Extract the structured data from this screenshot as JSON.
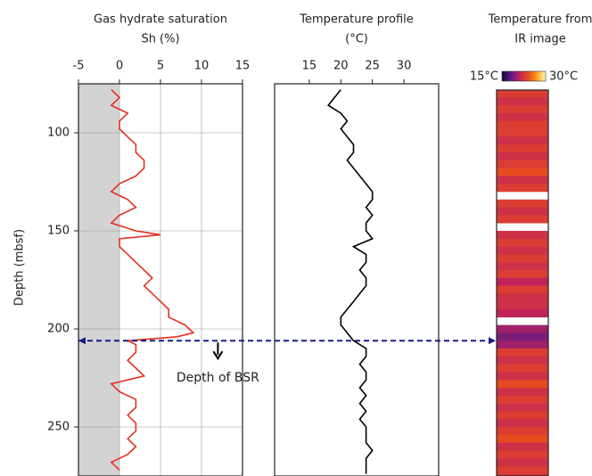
{
  "chart_data": [
    {
      "type": "line",
      "title": "Gas hydrate saturation",
      "subtitle": "Sh (%)",
      "ylabel": "Depth (mbsf)",
      "xlim": [
        -5,
        15
      ],
      "xticks": [
        -5,
        0,
        5,
        10,
        15
      ],
      "ylim": [
        75,
        275
      ],
      "yticks": [
        100,
        150,
        200,
        250
      ],
      "grid": true,
      "shade_color": "#d3d3d3",
      "series": [
        {
          "color": "#e5301e",
          "y": [
            78,
            82,
            86,
            90,
            94,
            98,
            102,
            106,
            110,
            114,
            118,
            122,
            126,
            130,
            134,
            138,
            142,
            146,
            150,
            152,
            154,
            158,
            162,
            166,
            170,
            174,
            178,
            182,
            186,
            190,
            194,
            198,
            202,
            204,
            206,
            208,
            212,
            216,
            220,
            224,
            228,
            232,
            236,
            240,
            244,
            248,
            252,
            256,
            260,
            264,
            268,
            272
          ],
          "values": [
            -1,
            0,
            -1,
            1,
            0,
            0,
            1,
            2,
            2,
            3,
            3,
            2,
            0,
            -1,
            1,
            2,
            0,
            -1,
            2,
            5,
            0,
            0,
            1,
            2,
            3,
            4,
            3,
            4,
            5,
            6,
            6,
            8,
            9,
            7,
            1,
            2,
            2,
            1,
            2,
            3,
            -1,
            0,
            2,
            2,
            1,
            2,
            2,
            1,
            2,
            1,
            -1,
            0
          ]
        }
      ],
      "annotation": {
        "depth": 206,
        "label": "Depth of BSR",
        "x": 12
      }
    },
    {
      "type": "line",
      "title": "Temperature   profile",
      "subtitle": "(°C)",
      "xlim": [
        9.5,
        35.5
      ],
      "xticks": [
        15,
        20,
        25,
        30
      ],
      "ylim": [
        75,
        275
      ],
      "series": [
        {
          "color": "#000000",
          "y": [
            78,
            82,
            86,
            90,
            94,
            98,
            102,
            106,
            110,
            114,
            118,
            122,
            126,
            130,
            134,
            138,
            142,
            146,
            150,
            154,
            158,
            162,
            166,
            170,
            174,
            178,
            182,
            186,
            190,
            194,
            198,
            202,
            206,
            210,
            214,
            218,
            222,
            226,
            230,
            234,
            238,
            242,
            246,
            250,
            254,
            258,
            262,
            266,
            270,
            274
          ],
          "values": [
            20,
            19,
            18,
            20,
            21,
            20,
            21,
            22,
            22,
            21,
            22,
            23,
            24,
            25,
            25,
            24,
            25,
            24,
            24,
            25,
            22,
            24,
            24,
            23,
            24,
            24,
            23,
            22,
            21,
            20,
            20,
            21,
            22,
            24,
            24,
            23,
            24,
            24,
            23,
            24,
            23,
            24,
            23,
            24,
            24,
            24,
            25,
            24,
            24,
            24
          ]
        }
      ]
    },
    {
      "type": "heatstrip",
      "title": "Temperature from",
      "subtitle": "IR image",
      "ylim": [
        75,
        275
      ],
      "clim": [
        15,
        30
      ],
      "cticks": [
        {
          "value": 15,
          "label": "15°C"
        },
        {
          "value": 30,
          "label": "30°C"
        }
      ],
      "colormap": [
        "#12063a",
        "#5a1a8a",
        "#c0245a",
        "#e84a20",
        "#f7a020",
        "#fff8c0"
      ],
      "y": [
        78,
        82,
        86,
        90,
        94,
        98,
        102,
        106,
        110,
        114,
        118,
        122,
        126,
        130,
        134,
        138,
        142,
        146,
        150,
        154,
        158,
        162,
        166,
        170,
        174,
        178,
        182,
        186,
        190,
        194,
        198,
        202,
        206,
        210,
        214,
        218,
        222,
        226,
        230,
        234,
        238,
        242,
        246,
        250,
        254,
        258,
        262,
        266,
        270,
        274
      ],
      "values": [
        23,
        22,
        23,
        22,
        23,
        23,
        22,
        23,
        22,
        23,
        24,
        22,
        23,
        null,
        23,
        22,
        23,
        null,
        22,
        23,
        22,
        23,
        22,
        23,
        21,
        23,
        22,
        22,
        21,
        null,
        20,
        19,
        20,
        23,
        22,
        23,
        22,
        24,
        22,
        23,
        22,
        23,
        22,
        23,
        24,
        22,
        23,
        22,
        23,
        22
      ]
    }
  ]
}
